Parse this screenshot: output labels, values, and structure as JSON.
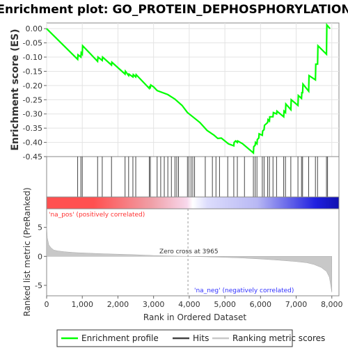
{
  "chart_data": {
    "type": "line",
    "title": "Enrichment plot: GO_PROTEIN_DEPHOSPHORYLATION",
    "xlabel": "Rank in Ordered Dataset",
    "xlim": [
      0,
      8200
    ],
    "x_ticks": [
      "0",
      "1,000",
      "2,000",
      "3,000",
      "4,000",
      "5,000",
      "6,000",
      "7,000",
      "8,000"
    ],
    "x_tick_values": [
      0,
      1000,
      2000,
      3000,
      4000,
      5000,
      6000,
      7000,
      8000
    ],
    "es_panel": {
      "ylabel": "Enrichment score (ES)",
      "ylim": [
        -0.45,
        0.02
      ],
      "y_ticks": [
        "0.00",
        "-0.05",
        "-0.10",
        "-0.15",
        "-0.20",
        "-0.25",
        "-0.30",
        "-0.35",
        "-0.40",
        "-0.45"
      ],
      "y_tick_values": [
        0.0,
        -0.05,
        -0.1,
        -0.15,
        -0.2,
        -0.25,
        -0.3,
        -0.35,
        -0.4,
        -0.45
      ],
      "grid": true,
      "series": [
        {
          "name": "Enrichment profile",
          "color": "#00ff00",
          "x": [
            0,
            870,
            880,
            960,
            970,
            1000,
            1010,
            1430,
            1440,
            1560,
            1570,
            1820,
            1830,
            2200,
            2210,
            2300,
            2310,
            2420,
            2430,
            2500,
            2510,
            2880,
            2890,
            2910,
            2920,
            3000,
            3100,
            3400,
            3600,
            3800,
            3950,
            4100,
            4300,
            4500,
            4700,
            4800,
            4900,
            5100,
            5250,
            5260,
            5300,
            5350,
            5360,
            5500,
            5800,
            5810,
            5850,
            5860,
            5900,
            5910,
            5950,
            5960,
            6050,
            6060,
            6100,
            6110,
            6200,
            6210,
            6250,
            6260,
            6350,
            6360,
            6450,
            6460,
            6650,
            6660,
            6700,
            6710,
            6850,
            6860,
            7050,
            7060,
            7150,
            7160,
            7180,
            7190,
            7350,
            7360,
            7540,
            7550,
            7600,
            7610,
            7850,
            7860,
            7950
          ],
          "y": [
            0.0,
            -0.108,
            -0.092,
            -0.1,
            -0.085,
            -0.09,
            -0.06,
            -0.115,
            -0.1,
            -0.112,
            -0.1,
            -0.128,
            -0.118,
            -0.16,
            -0.15,
            -0.165,
            -0.16,
            -0.17,
            -0.162,
            -0.17,
            -0.162,
            -0.21,
            -0.205,
            -0.207,
            -0.198,
            -0.205,
            -0.218,
            -0.232,
            -0.248,
            -0.27,
            -0.295,
            -0.31,
            -0.33,
            -0.358,
            -0.375,
            -0.386,
            -0.385,
            -0.405,
            -0.412,
            -0.4,
            -0.395,
            -0.4,
            -0.395,
            -0.405,
            -0.437,
            -0.415,
            -0.41,
            -0.4,
            -0.405,
            -0.39,
            -0.385,
            -0.37,
            -0.375,
            -0.36,
            -0.355,
            -0.34,
            -0.33,
            -0.32,
            -0.325,
            -0.31,
            -0.31,
            -0.295,
            -0.3,
            -0.29,
            -0.31,
            -0.29,
            -0.295,
            -0.265,
            -0.285,
            -0.25,
            -0.27,
            -0.235,
            -0.245,
            -0.225,
            -0.225,
            -0.195,
            -0.22,
            -0.165,
            -0.18,
            -0.125,
            -0.125,
            -0.06,
            -0.09,
            0.013,
            0.0
          ]
        }
      ]
    },
    "hits": {
      "name": "Hits",
      "color": "#444444",
      "positions": [
        870,
        960,
        1000,
        1430,
        1560,
        1820,
        2200,
        2300,
        2420,
        2500,
        2880,
        2910,
        3100,
        3200,
        3300,
        3400,
        3500,
        3600,
        3650,
        3700,
        3950,
        3990,
        4050,
        4100,
        4150,
        4450,
        4650,
        4750,
        4850,
        5080,
        5250,
        5350,
        5550,
        5800,
        5850,
        5900,
        6050,
        6100,
        6200,
        6250,
        6350,
        6450,
        6650,
        6700,
        6850,
        7050,
        7150,
        7180,
        7350,
        7540,
        7600,
        7850,
        7880
      ]
    },
    "ranking_panel": {
      "ylabel": "Ranked list metric (PreRanked)",
      "ylim": [
        -6.8,
        8.2
      ],
      "y_ticks": [
        "5",
        "0",
        "-5"
      ],
      "y_tick_values": [
        5,
        0,
        -5
      ],
      "series": [
        {
          "name": "Ranking metric scores",
          "color": "#c8c8c8",
          "x": [
            0,
            20,
            60,
            120,
            200,
            300,
            500,
            800,
            1200,
            1600,
            2000,
            2500,
            3000,
            3500,
            3965,
            4500,
            5000,
            5500,
            6000,
            6500,
            7000,
            7300,
            7500,
            7700,
            7850,
            7930,
            7970,
            8000
          ],
          "y": [
            5.5,
            3.2,
            2.0,
            1.5,
            1.1,
            0.95,
            0.8,
            0.65,
            0.55,
            0.45,
            0.38,
            0.28,
            0.15,
            0.06,
            0.0,
            -0.08,
            -0.18,
            -0.28,
            -0.45,
            -0.65,
            -0.9,
            -1.1,
            -1.4,
            -1.9,
            -2.6,
            -3.6,
            -5.0,
            -6.2
          ]
        }
      ],
      "annotations": {
        "pos_label": "'na_pos' (positively correlated)",
        "pos_color": "#ff3030",
        "neg_label": "'na_neg' (negatively correlated)",
        "neg_color": "#3030ff",
        "zero_cross_text": "Zero cross at 3965",
        "zero_cross_value": 3965
      }
    },
    "colorbar": {
      "n_total": 8000,
      "pos_color": "#ff5050",
      "mid_color": "#ffffff",
      "neg_color": "#2020e0"
    },
    "legend": {
      "placement": "bottom",
      "entries": [
        {
          "label": "Enrichment profile",
          "color": "#00ff00"
        },
        {
          "label": "Hits",
          "color": "#444444"
        },
        {
          "label": "Ranking metric scores",
          "color": "#c8c8c8"
        }
      ]
    }
  }
}
